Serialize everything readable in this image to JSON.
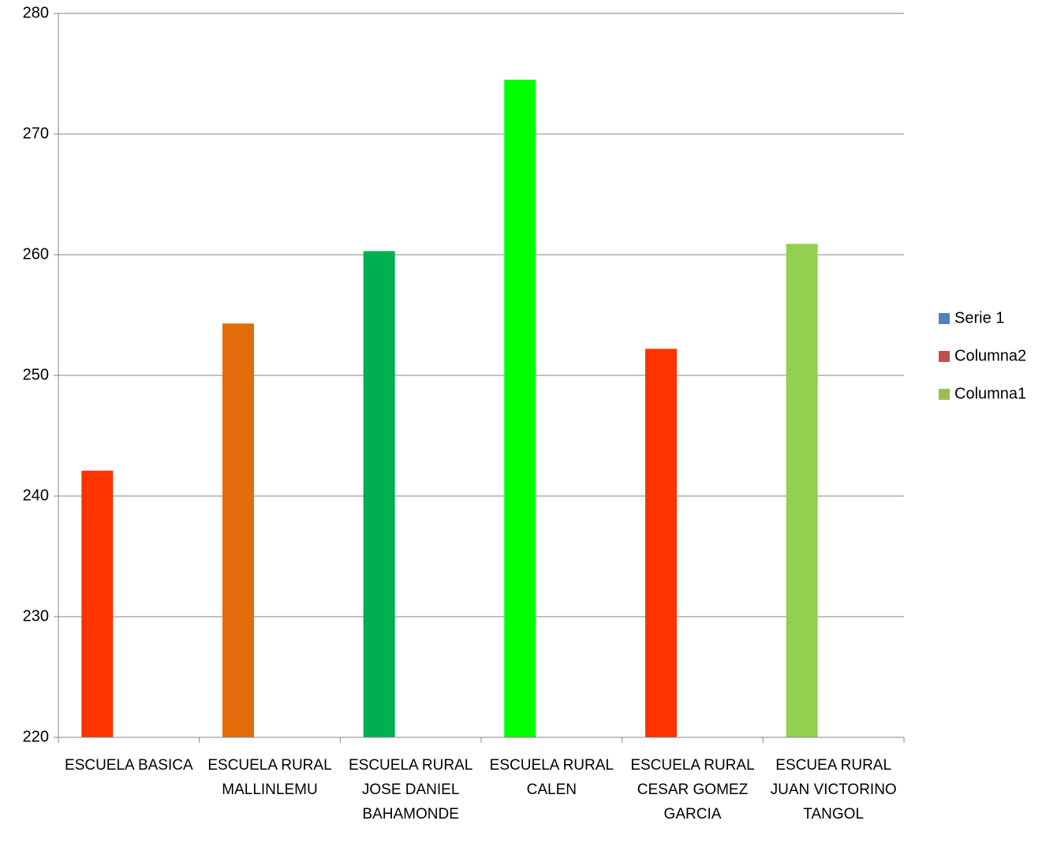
{
  "chart_data": {
    "type": "bar",
    "categories": [
      "ESCUELA BASICA",
      "ESCUELA RURAL MALLINLEMU",
      "ESCUELA RURAL JOSE DANIEL BAHAMONDE",
      "ESCUELA RURAL CALEN",
      "ESCUELA RURAL CESAR GOMEZ GARCIA",
      "ESCUEA RURAL JUAN VICTORINO TANGOL"
    ],
    "series": [
      {
        "name": "Serie 1",
        "color": "#4f81bd",
        "values": [
          242.1,
          254.3,
          260.3,
          274.5,
          252.2,
          260.9
        ],
        "colors": [
          "#ff3300",
          "#e36c0a",
          "#00b050",
          "#00ff00",
          "#ff3300",
          "#92d050"
        ]
      },
      {
        "name": "Columna2",
        "color": "#c0504d",
        "values": [
          null,
          null,
          null,
          null,
          null,
          null
        ]
      },
      {
        "name": "Columna1",
        "color": "#9bbb59",
        "values": [
          null,
          null,
          null,
          null,
          null,
          null
        ]
      }
    ],
    "ylim": [
      220,
      280
    ],
    "yticks": [
      220,
      230,
      240,
      250,
      260,
      270,
      280
    ],
    "grid": true,
    "legend": "right"
  }
}
